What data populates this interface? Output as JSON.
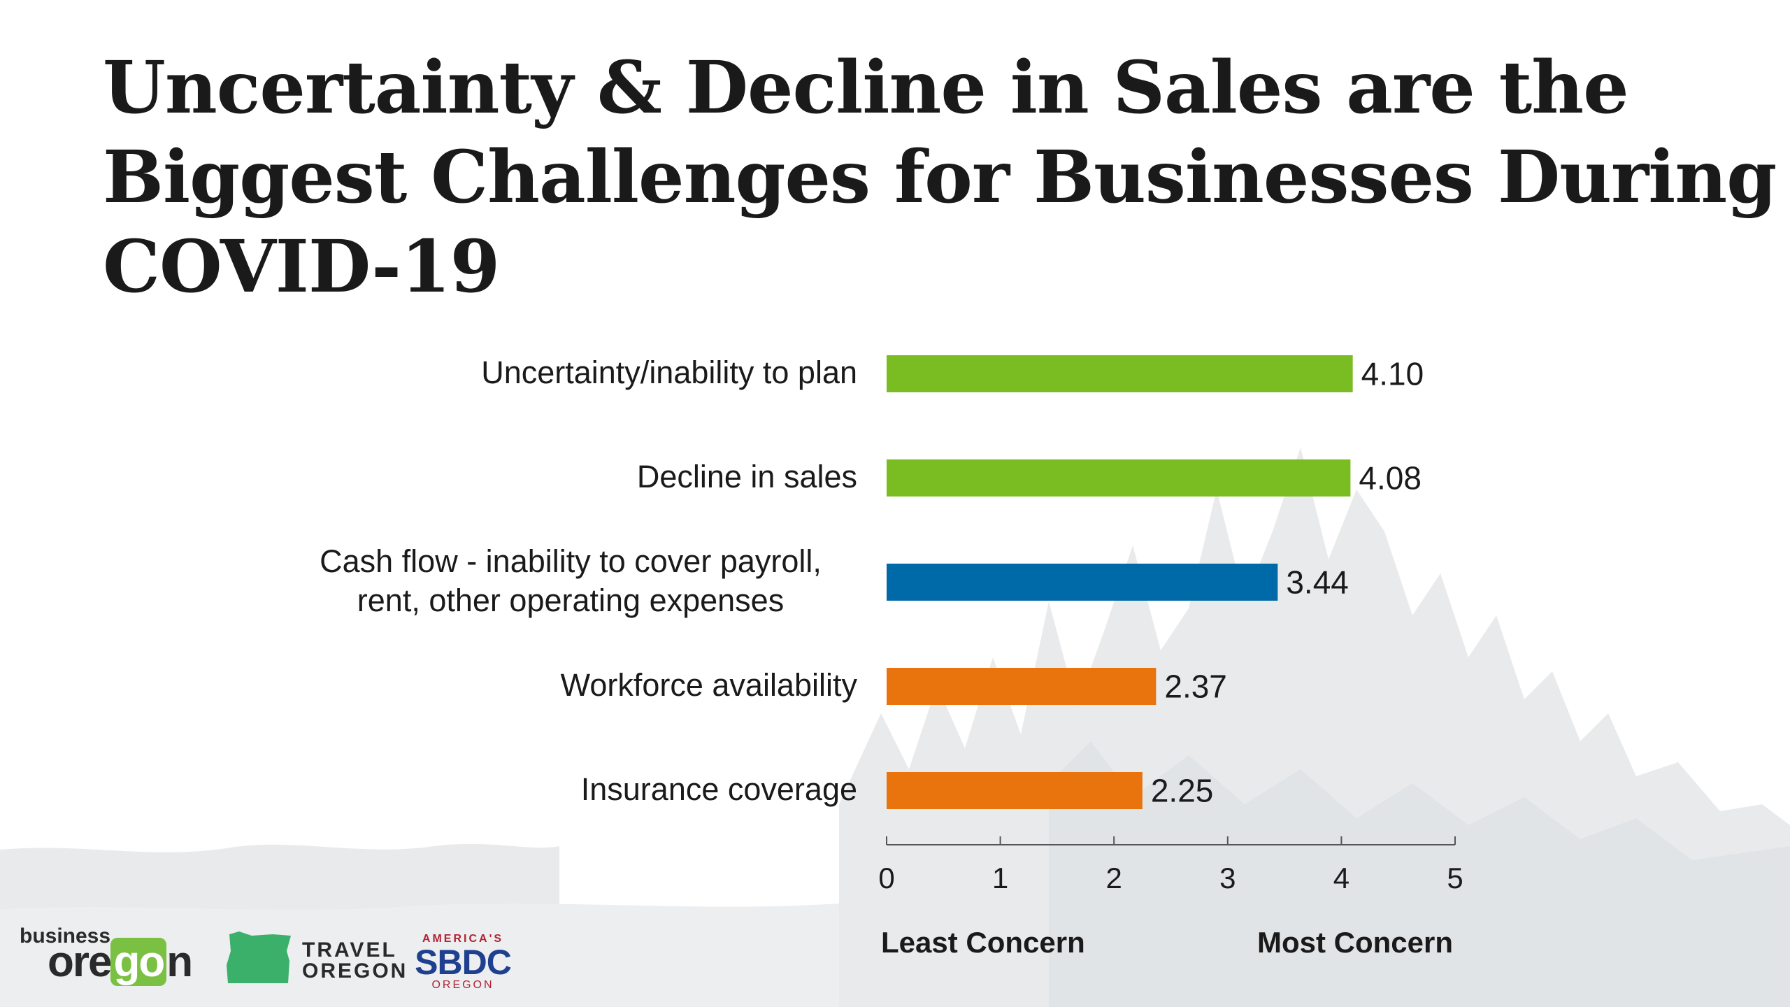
{
  "title_lines": [
    "Uncertainty & Decline in Sales are the",
    "Biggest Challenges for Businesses During",
    "COVID-19"
  ],
  "chart_data": {
    "type": "bar",
    "orientation": "horizontal",
    "categories": [
      [
        "Uncertainty/inability to plan"
      ],
      [
        "Decline in sales"
      ],
      [
        "Cash flow - inability to cover payroll,",
        "rent, other operating expenses"
      ],
      [
        "Workforce availability"
      ],
      [
        "Insurance coverage"
      ]
    ],
    "values": [
      4.1,
      4.08,
      3.44,
      2.37,
      2.25
    ],
    "value_labels": [
      "4.10",
      "4.08",
      "3.44",
      "2.37",
      "2.25"
    ],
    "bar_colors": [
      "#7abd22",
      "#7abd22",
      "#0069a7",
      "#e9730c",
      "#e9730c"
    ],
    "xlim": [
      0,
      5
    ],
    "ticks": [
      "0",
      "1",
      "2",
      "3",
      "4",
      "5"
    ],
    "axis_end_labels": {
      "left": "Least Concern",
      "right": "Most Concern"
    },
    "grid": false,
    "legend": "none"
  },
  "logos": {
    "business_oregon": {
      "small": "business",
      "big_pre": "ore",
      "big_go": "go",
      "big_post": "n",
      "accent": "#7ac143"
    },
    "travel_oregon": {
      "line1": "TRAVEL",
      "line2": "OREGON",
      "accent": "#3bb06a"
    },
    "sbdc": {
      "top": "AMERICA'S",
      "mid": "SBDC",
      "bottom": "OREGON"
    }
  }
}
